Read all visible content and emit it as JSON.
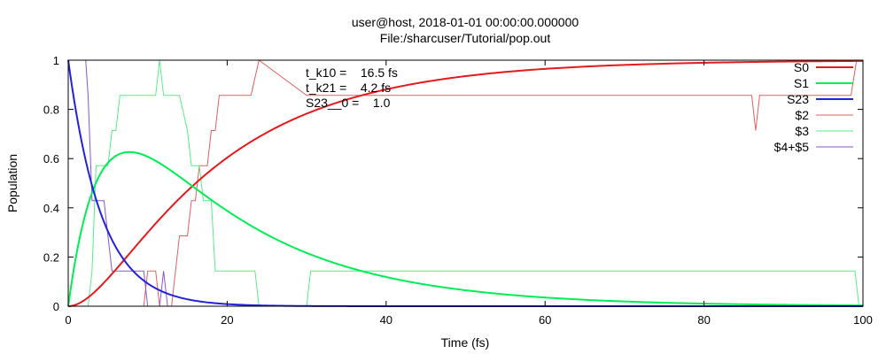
{
  "chart_data": {
    "type": "line",
    "title": "user@host, 2018-01-01 00:00:00.000000",
    "subtitle": "File:/sharcuser/Tutorial/pop.out",
    "xlabel": "Time (fs)",
    "ylabel": "Population",
    "xlim": [
      0,
      100
    ],
    "ylim": [
      0,
      1
    ],
    "xticks": [
      0,
      20,
      40,
      60,
      80,
      100
    ],
    "yticks": [
      0,
      0.2,
      0.4,
      0.6,
      0.8,
      1
    ],
    "x_tick_labels": [
      "0",
      "20",
      "40",
      "60",
      "80",
      "100"
    ],
    "y_tick_labels": [
      "0",
      "0.2",
      "0.4",
      "0.6",
      "0.8",
      "1"
    ],
    "grid": false,
    "legend_position": "top-right",
    "annotations": [
      "t_k10 =    16.5 fs",
      "t_k21 =    4.2 fs",
      "S23__0 =    1.0"
    ],
    "fit_parameters": {
      "t_k10": 16.5,
      "t_k21": 4.2,
      "S23_0": 1.0
    },
    "series": [
      {
        "name": "S0",
        "kind": "fit",
        "color": "#e41a1c",
        "width": 2
      },
      {
        "name": "S1",
        "kind": "fit",
        "color": "#00ee55",
        "width": 2
      },
      {
        "name": "S23",
        "kind": "fit",
        "color": "#2222dd",
        "width": 2
      },
      {
        "name": "$2",
        "kind": "step",
        "color": "#e06060",
        "width": 1,
        "points": [
          [
            0,
            0
          ],
          [
            9.5,
            0
          ],
          [
            10,
            0.143
          ],
          [
            11,
            0.143
          ],
          [
            11.5,
            0
          ],
          [
            13,
            0
          ],
          [
            13.5,
            0.143
          ],
          [
            14,
            0.286
          ],
          [
            15,
            0.286
          ],
          [
            15.5,
            0.429
          ],
          [
            16,
            0.429
          ],
          [
            16.5,
            0.571
          ],
          [
            17.5,
            0.571
          ],
          [
            18,
            0.714
          ],
          [
            18.5,
            0.714
          ],
          [
            19,
            0.857
          ],
          [
            23,
            0.857
          ],
          [
            24,
            1.0
          ],
          [
            30,
            0.857
          ],
          [
            86,
            0.857
          ],
          [
            86.5,
            0.714
          ],
          [
            87,
            0.857
          ],
          [
            98.5,
            0.857
          ],
          [
            99.2,
            1.0
          ],
          [
            100,
            1.0
          ]
        ]
      },
      {
        "name": "$3",
        "kind": "step",
        "color": "#55ee88",
        "width": 1,
        "points": [
          [
            0,
            0
          ],
          [
            2.5,
            0
          ],
          [
            3,
            0.143
          ],
          [
            3.5,
            0.571
          ],
          [
            5,
            0.571
          ],
          [
            5.5,
            0.714
          ],
          [
            6,
            0.714
          ],
          [
            6.5,
            0.857
          ],
          [
            11,
            0.857
          ],
          [
            11.5,
            1.0
          ],
          [
            12,
            0.857
          ],
          [
            14,
            0.857
          ],
          [
            15,
            0.714
          ],
          [
            15.5,
            0.571
          ],
          [
            16.5,
            0.571
          ],
          [
            17,
            0.429
          ],
          [
            18,
            0.429
          ],
          [
            18.5,
            0.143
          ],
          [
            23.5,
            0.143
          ],
          [
            24,
            0
          ],
          [
            30,
            0
          ],
          [
            30.5,
            0.143
          ],
          [
            99,
            0.143
          ],
          [
            99.5,
            0
          ],
          [
            100,
            0
          ]
        ]
      },
      {
        "name": "$4+$5",
        "kind": "step",
        "color": "#8855cc",
        "width": 1,
        "points": [
          [
            2.2,
            1.0
          ],
          [
            2.5,
            0.857
          ],
          [
            3,
            0.429
          ],
          [
            4.5,
            0.429
          ],
          [
            5,
            0.286
          ],
          [
            5.5,
            0.143
          ],
          [
            9.5,
            0.143
          ],
          [
            10,
            0
          ],
          [
            11.5,
            0
          ],
          [
            12,
            0.143
          ],
          [
            12.5,
            0
          ],
          [
            100,
            0
          ]
        ]
      }
    ]
  }
}
